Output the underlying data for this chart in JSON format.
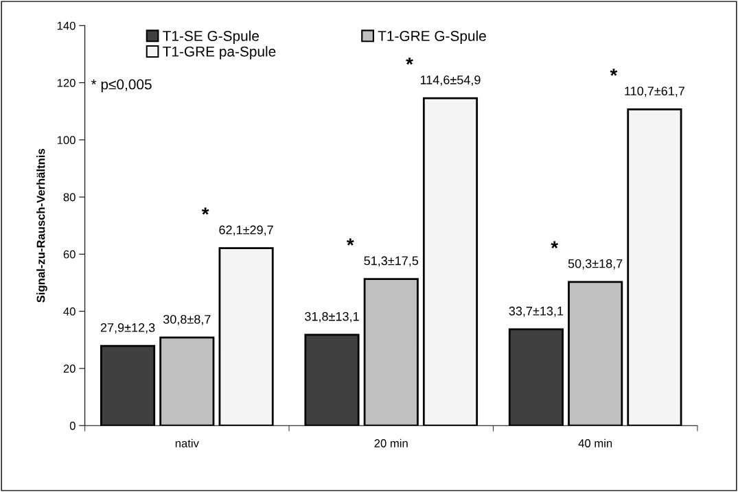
{
  "chart_data": {
    "type": "bar",
    "ylabel": "Signal-zu-Rausch-Verhältnis",
    "categories": [
      "nativ",
      "20 min",
      "40 min"
    ],
    "series": [
      {
        "name": "T1-SE G-Spule",
        "color": "#404040",
        "values": [
          27.9,
          31.8,
          33.7
        ],
        "value_labels": [
          "27,9±12,3",
          "31,8±13,1",
          "33,7±13,1"
        ]
      },
      {
        "name": "T1-GRE G-Spule",
        "color": "#c0c0c0",
        "values": [
          30.8,
          51.3,
          50.3
        ],
        "value_labels": [
          "30,8±8,7",
          "51,3±17,5",
          "50,3±18,7"
        ]
      },
      {
        "name": "T1-GRE pa-Spule",
        "color": "#f4f4f4",
        "values": [
          62.1,
          114.6,
          110.7
        ],
        "value_labels": [
          "62,1±29,7",
          "114,6±54,9",
          "110,7±61,7"
        ]
      }
    ],
    "ylim": [
      0,
      140
    ],
    "yticks": [
      0,
      20,
      40,
      60,
      80,
      100,
      120,
      140
    ],
    "grid": false,
    "legend": "top left",
    "annotations": [
      "* p≤0,005",
      "*",
      "*",
      "*",
      "*",
      "*"
    ]
  }
}
